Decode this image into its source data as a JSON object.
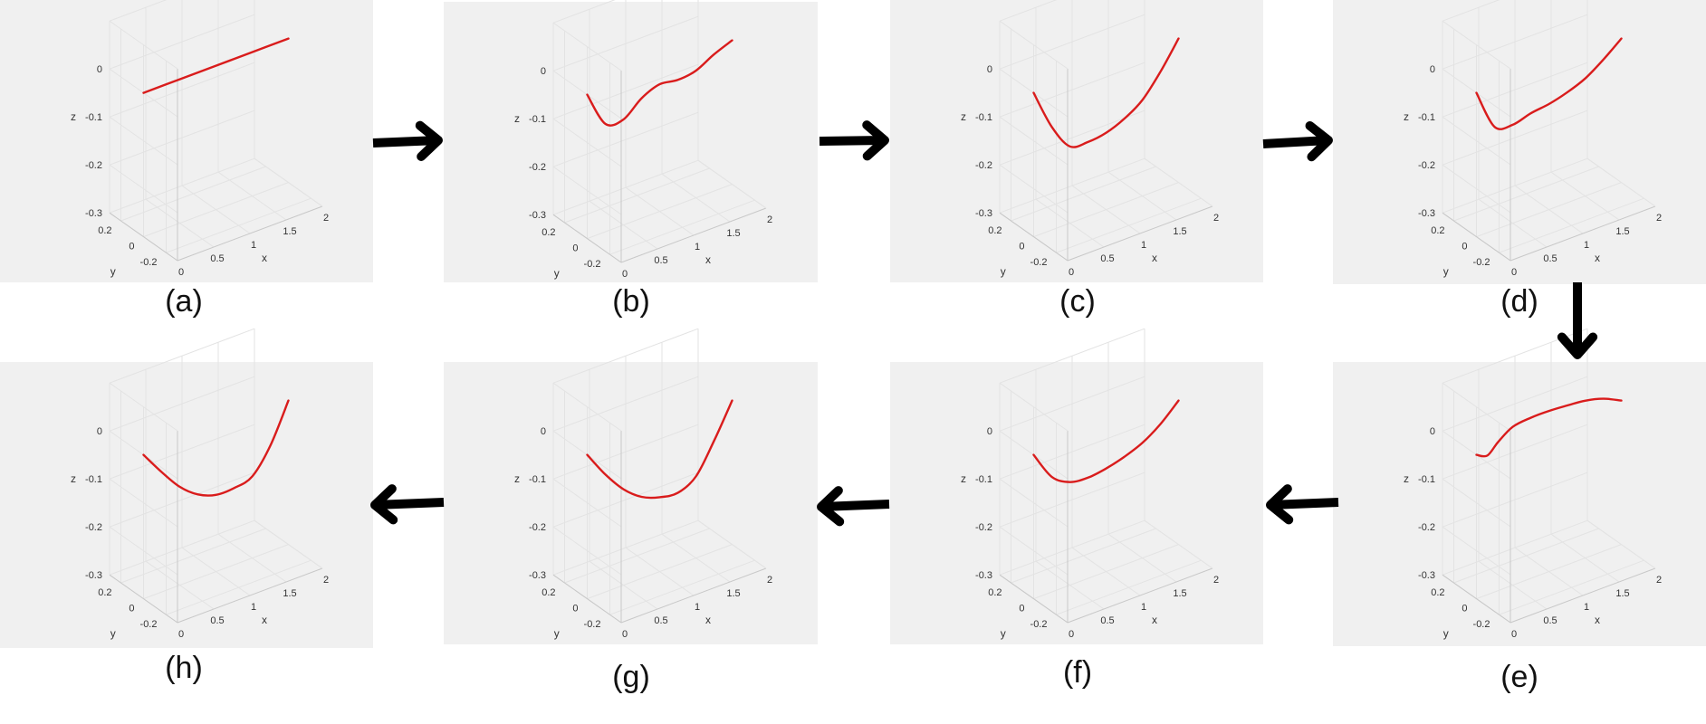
{
  "colors": {
    "curve": "#d91c1c",
    "panel_background": "#f0f0f0",
    "arrow": "#000000"
  },
  "flow": [
    "a",
    "b",
    "c",
    "d",
    "e",
    "f",
    "g",
    "h"
  ],
  "chart_data": [
    {
      "id": "a",
      "caption": "(a)",
      "type": "line",
      "xlabel": "x",
      "ylabel": "y",
      "zlabel": "z",
      "xlim": [
        0,
        2
      ],
      "ylim": [
        -0.3,
        0.3
      ],
      "zlim": [
        -0.3,
        0.1
      ],
      "xticks": [
        "0",
        "0.5",
        "1",
        "1.5",
        "2"
      ],
      "yticks": [
        "-0.2",
        "0",
        "0.2"
      ],
      "zticks": [
        "-0.3",
        "-0.2",
        "-0.1",
        "0"
      ],
      "grid": true,
      "series": [
        {
          "x": [
            0,
            0.5,
            1,
            1.5,
            2
          ],
          "y": [
            0,
            0,
            0,
            0,
            0
          ],
          "z": [
            0,
            0,
            0,
            0,
            0
          ]
        }
      ]
    },
    {
      "id": "b",
      "caption": "(b)",
      "type": "line",
      "xlabel": "x",
      "ylabel": "y",
      "zlabel": "z",
      "xlim": [
        0,
        2
      ],
      "ylim": [
        -0.3,
        0.3
      ],
      "zlim": [
        -0.3,
        0.1
      ],
      "xticks": [
        "0",
        "0.5",
        "1",
        "1.5",
        "2"
      ],
      "yticks": [
        "-0.2",
        "0",
        "0.2"
      ],
      "zticks": [
        "-0.3",
        "-0.2",
        "-0.1",
        "0"
      ],
      "grid": true,
      "series": [
        {
          "x": [
            0,
            0.25,
            0.5,
            0.75,
            1,
            1.25,
            1.5,
            1.75,
            2
          ],
          "y": [
            0,
            0,
            0,
            0,
            0,
            0,
            0,
            0,
            0
          ],
          "z": [
            0,
            -0.075,
            -0.08,
            -0.05,
            -0.035,
            -0.04,
            -0.035,
            -0.015,
            0
          ]
        }
      ]
    },
    {
      "id": "c",
      "caption": "(c)",
      "type": "line",
      "xlabel": "x",
      "ylabel": "y",
      "zlabel": "z",
      "xlim": [
        0,
        2
      ],
      "ylim": [
        -0.3,
        0.3
      ],
      "zlim": [
        -0.3,
        0.1
      ],
      "xticks": [
        "0",
        "0.5",
        "1",
        "1.5",
        "2"
      ],
      "yticks": [
        "-0.2",
        "0",
        "0.2"
      ],
      "zticks": [
        "-0.3",
        "-0.2",
        "-0.1",
        "0"
      ],
      "grid": true,
      "series": [
        {
          "x": [
            0,
            0.25,
            0.5,
            0.75,
            1,
            1.25,
            1.5,
            1.75,
            2
          ],
          "y": [
            0,
            0,
            0,
            0,
            0,
            0,
            0,
            0,
            0
          ],
          "z": [
            0,
            -0.085,
            -0.14,
            -0.145,
            -0.14,
            -0.125,
            -0.1,
            -0.055,
            0
          ]
        }
      ]
    },
    {
      "id": "d",
      "caption": "(d)",
      "type": "line",
      "xlabel": "x",
      "ylabel": "y",
      "zlabel": "z",
      "xlim": [
        0,
        2
      ],
      "ylim": [
        -0.3,
        0.3
      ],
      "zlim": [
        -0.3,
        0.1
      ],
      "xticks": [
        "0",
        "0.5",
        "1",
        "1.5",
        "2"
      ],
      "yticks": [
        "-0.2",
        "0",
        "0.2"
      ],
      "zticks": [
        "-0.3",
        "-0.2",
        "-0.1",
        "0"
      ],
      "grid": true,
      "series": [
        {
          "x": [
            0,
            0.25,
            0.5,
            0.75,
            1,
            1.25,
            1.5,
            1.75,
            2
          ],
          "y": [
            0,
            0,
            0,
            0,
            0,
            0,
            0,
            0,
            0
          ],
          "z": [
            0,
            -0.085,
            -0.095,
            -0.085,
            -0.08,
            -0.07,
            -0.055,
            -0.03,
            0
          ]
        }
      ]
    },
    {
      "id": "e",
      "caption": "(e)",
      "type": "line",
      "xlabel": "x",
      "ylabel": "y",
      "zlabel": "z",
      "xlim": [
        0,
        2
      ],
      "ylim": [
        -0.3,
        0.3
      ],
      "zlim": [
        -0.3,
        0.1
      ],
      "xticks": [
        "0",
        "0.5",
        "1",
        "1.5",
        "2"
      ],
      "yticks": [
        "-0.2",
        "0",
        "0.2"
      ],
      "zticks": [
        "-0.3",
        "-0.2",
        "-0.1",
        "0"
      ],
      "grid": true,
      "series": [
        {
          "x": [
            0,
            0.15,
            0.3,
            0.5,
            0.75,
            1,
            1.25,
            1.5,
            1.75,
            2
          ],
          "y": [
            0,
            0,
            0,
            0,
            0,
            0,
            0,
            0,
            0,
            0
          ],
          "z": [
            0,
            -0.01,
            0.01,
            0.03,
            0.035,
            0.035,
            0.032,
            0.028,
            0.018,
            0
          ]
        }
      ]
    },
    {
      "id": "f",
      "caption": "(f)",
      "type": "line",
      "xlabel": "x",
      "ylabel": "y",
      "zlabel": "z",
      "xlim": [
        0,
        2
      ],
      "ylim": [
        -0.3,
        0.3
      ],
      "zlim": [
        -0.3,
        0.1
      ],
      "xticks": [
        "0",
        "0.5",
        "1",
        "1.5",
        "2"
      ],
      "yticks": [
        "-0.2",
        "0",
        "0.2"
      ],
      "zticks": [
        "-0.3",
        "-0.2",
        "-0.1",
        "0"
      ],
      "grid": true,
      "series": [
        {
          "x": [
            0,
            0.25,
            0.5,
            0.75,
            1,
            1.25,
            1.5,
            1.75,
            2
          ],
          "y": [
            0,
            0,
            0,
            0,
            0,
            0,
            0,
            0,
            0
          ],
          "z": [
            0,
            -0.06,
            -0.085,
            -0.09,
            -0.085,
            -0.075,
            -0.06,
            -0.035,
            0
          ]
        }
      ]
    },
    {
      "id": "g",
      "caption": "(g)",
      "type": "line",
      "xlabel": "x",
      "ylabel": "y",
      "zlabel": "z",
      "xlim": [
        0,
        2
      ],
      "ylim": [
        -0.3,
        0.3
      ],
      "zlim": [
        -0.3,
        0.1
      ],
      "xticks": [
        "0",
        "0.5",
        "1",
        "1.5",
        "2"
      ],
      "yticks": [
        "-0.2",
        "0",
        "0.2"
      ],
      "zticks": [
        "-0.3",
        "-0.2",
        "-0.1",
        "0"
      ],
      "grid": true,
      "series": [
        {
          "x": [
            0,
            0.25,
            0.5,
            0.75,
            1,
            1.25,
            1.5,
            1.75,
            2
          ],
          "y": [
            0,
            0,
            0,
            0,
            0,
            0,
            0,
            0,
            0
          ],
          "z": [
            0,
            -0.055,
            -0.1,
            -0.13,
            -0.145,
            -0.15,
            -0.13,
            -0.07,
            0
          ]
        }
      ]
    },
    {
      "id": "h",
      "caption": "(h)",
      "type": "line",
      "xlabel": "x",
      "ylabel": "y",
      "zlabel": "z",
      "xlim": [
        0,
        2
      ],
      "ylim": [
        -0.3,
        0.3
      ],
      "zlim": [
        -0.3,
        0.1
      ],
      "xticks": [
        "0",
        "0.5",
        "1",
        "1.5",
        "2"
      ],
      "yticks": [
        "-0.2",
        "0",
        "0.2"
      ],
      "zticks": [
        "-0.3",
        "-0.2",
        "-0.1",
        "0"
      ],
      "grid": true,
      "series": [
        {
          "x": [
            0,
            0.25,
            0.5,
            0.75,
            1,
            1.25,
            1.5,
            1.75,
            2
          ],
          "y": [
            0,
            0,
            0,
            0,
            0,
            0,
            0,
            0,
            0
          ],
          "z": [
            0,
            -0.05,
            -0.095,
            -0.125,
            -0.14,
            -0.14,
            -0.13,
            -0.08,
            0
          ]
        }
      ]
    }
  ]
}
